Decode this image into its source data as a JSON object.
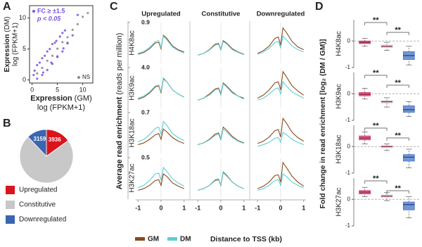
{
  "chart_data": [
    {
      "type": "scatter",
      "panel_label": "A",
      "xlabel": {
        "title": "Expression",
        "qualifier": "(GM)",
        "unit": "log (FPKM+1)"
      },
      "ylabel": {
        "title": "Expression",
        "qualifier": "(DM)",
        "unit": "log (FPKM+1)"
      },
      "xlim": [
        -0.5,
        12
      ],
      "ylim": [
        -0.5,
        12
      ],
      "xticks": [
        0,
        5,
        10
      ],
      "yticks": [
        0,
        5,
        10
      ],
      "series": [
        {
          "name": "FC ≥ ±1.5",
          "condition": "p < 0.05",
          "color": "#7b52e0",
          "x": [
            0.5,
            1,
            1.5,
            2,
            2.5,
            3,
            3.5,
            4,
            4.5,
            5,
            5.5,
            6,
            6.5,
            7,
            8,
            9,
            1,
            2,
            3,
            4,
            5,
            6,
            7,
            0.3,
            2.2,
            3.8,
            4.8,
            6.2
          ],
          "y": [
            1.5,
            0.2,
            2.8,
            0.8,
            3.9,
            1.6,
            5,
            2.6,
            6,
            3.7,
            7,
            4.6,
            8,
            5.9,
            7.2,
            10.5,
            2.4,
            3.5,
            4.6,
            5.8,
            3.8,
            7.6,
            6,
            0.8,
            1.2,
            2.8,
            6.3,
            5.1
          ]
        },
        {
          "name": "NS",
          "color": "#8a8a8a",
          "x": [
            1,
            2,
            3,
            4,
            5,
            6,
            7,
            8,
            9,
            10,
            11
          ],
          "y": [
            1.05,
            1.95,
            3.1,
            3.9,
            5.05,
            6.1,
            6.9,
            8.1,
            9,
            10.2,
            10.8
          ]
        }
      ]
    },
    {
      "type": "pie",
      "panel_label": "B",
      "categories": [
        "Upregulated",
        "Constitutive",
        "Downregulated"
      ],
      "values": [
        3936,
        19000,
        3159
      ],
      "value_labels": [
        "3936",
        null,
        "3159"
      ],
      "colors": [
        "#d9141c",
        "#c8c8c8",
        "#3a66b0"
      ]
    },
    {
      "type": "line",
      "panel_label": "C",
      "ylabel": {
        "title": "Average read enrichment",
        "unit": "(reads per million)"
      },
      "xlabel": "Distance to TSS (kb)",
      "columns": [
        "Upregulated",
        "Constitutive",
        "Downregulated"
      ],
      "series": [
        {
          "name": "GM",
          "color": "#8b4a1e"
        },
        {
          "name": "DM",
          "color": "#5ccfd4"
        }
      ],
      "x": [
        -1,
        -0.75,
        -0.5,
        -0.25,
        -0.1,
        0,
        0.1,
        0.25,
        0.5,
        0.75,
        1
      ],
      "xlim": [
        -1.1,
        1.1
      ],
      "xticks": [
        -1,
        0,
        1
      ],
      "rows": [
        {
          "name": "H4K8ac",
          "ylim": [
            0,
            0.9
          ],
          "yticks": [
            0.9
          ]
        },
        {
          "name": "H3K9ac",
          "ylim": [
            0,
            4
          ],
          "yticks": [
            {
              "value": 4,
              "label": "4.0"
            }
          ]
        },
        {
          "name": "H3K18ac",
          "ylim": [
            0,
            0.7
          ],
          "yticks": [
            0.7
          ]
        },
        {
          "name": "H3K27ac",
          "ylim": [
            0,
            0.5
          ],
          "yticks": [
            0.5
          ]
        }
      ],
      "panels": [
        [
          [
            [
              0.2,
              0.24,
              0.32,
              0.45,
              0.46,
              0.32,
              0.62,
              0.55,
              0.38,
              0.3,
              0.25
            ],
            [
              0.22,
              0.26,
              0.35,
              0.48,
              0.5,
              0.34,
              0.6,
              0.52,
              0.36,
              0.28,
              0.23
            ]
          ],
          [
            [
              0.18,
              0.22,
              0.3,
              0.42,
              0.44,
              0.3,
              0.5,
              0.45,
              0.32,
              0.25,
              0.2
            ],
            [
              0.18,
              0.22,
              0.29,
              0.4,
              0.42,
              0.29,
              0.48,
              0.43,
              0.3,
              0.24,
              0.19
            ]
          ],
          [
            [
              0.22,
              0.28,
              0.38,
              0.55,
              0.58,
              0.4,
              0.78,
              0.68,
              0.48,
              0.36,
              0.3
            ],
            [
              0.2,
              0.25,
              0.33,
              0.46,
              0.48,
              0.34,
              0.6,
              0.52,
              0.38,
              0.3,
              0.25
            ]
          ]
        ],
        [
          [
            [
              0.9,
              1.1,
              1.5,
              2.1,
              2.2,
              1.5,
              2.9,
              2.6,
              1.8,
              1.4,
              1.1
            ],
            [
              1.0,
              1.2,
              1.6,
              2.2,
              2.3,
              1.6,
              3.0,
              2.6,
              1.8,
              1.4,
              1.1
            ]
          ],
          [
            [
              0.8,
              1.0,
              1.4,
              1.9,
              2.0,
              1.4,
              2.5,
              2.2,
              1.6,
              1.2,
              1.0
            ],
            [
              0.8,
              1.0,
              1.3,
              1.8,
              1.9,
              1.3,
              2.4,
              2.1,
              1.5,
              1.2,
              0.9
            ]
          ],
          [
            [
              1.0,
              1.3,
              1.8,
              2.5,
              2.6,
              1.8,
              3.6,
              3.1,
              2.2,
              1.7,
              1.3
            ],
            [
              0.8,
              1.0,
              1.4,
              1.9,
              2.0,
              1.4,
              2.6,
              2.2,
              1.6,
              1.3,
              1.0
            ]
          ]
        ],
        [
          [
            [
              0.15,
              0.18,
              0.24,
              0.32,
              0.34,
              0.24,
              0.42,
              0.37,
              0.27,
              0.21,
              0.17
            ],
            [
              0.2,
              0.24,
              0.32,
              0.43,
              0.45,
              0.32,
              0.55,
              0.48,
              0.34,
              0.27,
              0.22
            ]
          ],
          [
            [
              0.15,
              0.18,
              0.24,
              0.33,
              0.35,
              0.24,
              0.45,
              0.4,
              0.29,
              0.22,
              0.18
            ],
            [
              0.15,
              0.18,
              0.23,
              0.31,
              0.33,
              0.23,
              0.42,
              0.37,
              0.27,
              0.21,
              0.17
            ]
          ],
          [
            [
              0.17,
              0.21,
              0.28,
              0.39,
              0.41,
              0.28,
              0.6,
              0.52,
              0.36,
              0.27,
              0.21
            ],
            [
              0.12,
              0.15,
              0.19,
              0.26,
              0.27,
              0.19,
              0.36,
              0.32,
              0.24,
              0.19,
              0.15
            ]
          ]
        ],
        [
          [
            [
              0.1,
              0.12,
              0.16,
              0.22,
              0.23,
              0.16,
              0.3,
              0.27,
              0.19,
              0.15,
              0.12
            ],
            [
              0.13,
              0.16,
              0.22,
              0.3,
              0.31,
              0.22,
              0.38,
              0.33,
              0.24,
              0.19,
              0.15
            ]
          ],
          [
            [
              0.1,
              0.12,
              0.16,
              0.22,
              0.23,
              0.16,
              0.32,
              0.28,
              0.2,
              0.15,
              0.12
            ],
            [
              0.1,
              0.12,
              0.16,
              0.23,
              0.24,
              0.16,
              0.33,
              0.29,
              0.2,
              0.15,
              0.12
            ]
          ],
          [
            [
              0.12,
              0.15,
              0.2,
              0.28,
              0.29,
              0.2,
              0.44,
              0.38,
              0.27,
              0.2,
              0.15
            ],
            [
              0.1,
              0.12,
              0.16,
              0.22,
              0.23,
              0.16,
              0.3,
              0.27,
              0.2,
              0.16,
              0.13
            ]
          ]
        ]
      ]
    },
    {
      "type": "box",
      "panel_label": "D",
      "ylabel": "Fold change in read enrichment [log₂ (DM / GM)]",
      "ylim": [
        -1,
        0.8
      ],
      "yticks": [
        -1,
        0
      ],
      "colors": [
        "#d6336c",
        "#d0d0d0",
        "#4472c4"
      ],
      "rows": [
        {
          "name": "H4K8ac",
          "significance": [
            "**",
            "**"
          ],
          "boxes": [
            {
              "min": -0.2,
              "q1": -0.1,
              "median": -0.05,
              "q3": 0.0,
              "max": 0.1
            },
            {
              "min": -0.35,
              "q1": -0.25,
              "median": -0.2,
              "q3": -0.15,
              "max": -0.05
            },
            {
              "min": -0.9,
              "q1": -0.7,
              "median": -0.55,
              "q3": -0.4,
              "max": -0.2
            }
          ]
        },
        {
          "name": "H3K9ac",
          "significance": [
            "**",
            "**"
          ],
          "boxes": [
            {
              "min": -0.2,
              "q1": -0.08,
              "median": -0.02,
              "q3": 0.05,
              "max": 0.2
            },
            {
              "min": -0.5,
              "q1": -0.35,
              "median": -0.3,
              "q3": -0.25,
              "max": -0.15
            },
            {
              "min": -0.85,
              "q1": -0.7,
              "median": -0.6,
              "q3": -0.45,
              "max": -0.3
            }
          ]
        },
        {
          "name": "H3K18ac",
          "significance": [
            "**",
            "**"
          ],
          "boxes": [
            {
              "min": 0.1,
              "q1": 0.25,
              "median": 0.32,
              "q3": 0.4,
              "max": 0.55
            },
            {
              "min": -0.15,
              "q1": -0.05,
              "median": 0,
              "q3": 0.03,
              "max": 0.1
            },
            {
              "min": -0.8,
              "q1": -0.55,
              "median": -0.4,
              "q3": -0.3,
              "max": -0.1
            }
          ]
        },
        {
          "name": "H3K27ac",
          "significance": [
            "**",
            "**"
          ],
          "boxes": [
            {
              "min": 0.1,
              "q1": 0.2,
              "median": 0.27,
              "q3": 0.33,
              "max": 0.45
            },
            {
              "min": -0.05,
              "q1": 0.08,
              "median": 0.12,
              "q3": 0.17,
              "max": 0.25
            },
            {
              "min": -0.7,
              "q1": -0.4,
              "median": -0.2,
              "q3": -0.1,
              "max": 0.1
            }
          ]
        }
      ]
    }
  ]
}
